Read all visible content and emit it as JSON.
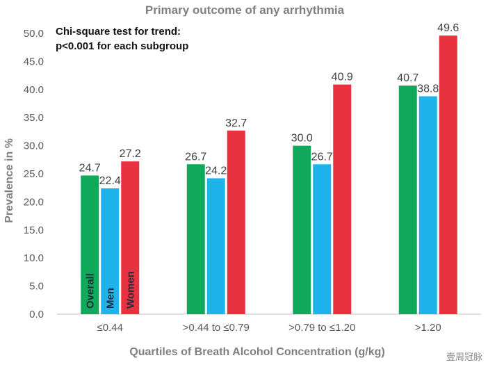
{
  "chart_data": {
    "type": "bar",
    "title": "Primary outcome of any arrhythmia",
    "annotation": [
      "Chi-square test for trend:",
      "p<0.001 for each subgroup"
    ],
    "xlabel": "Quartiles of Breath Alcohol Concentration (g/kg)",
    "ylabel": "Prevalence in %",
    "ylim": [
      0,
      50
    ],
    "yticks": [
      "0.0",
      "5.0",
      "10.0",
      "15.0",
      "20.0",
      "25.0",
      "30.0",
      "35.0",
      "40.0",
      "45.0",
      "50.0"
    ],
    "categories": [
      "≤0.44",
      ">0.44 to ≤0.79",
      ">0.79 to ≤1.20",
      ">1.20"
    ],
    "series": [
      {
        "name": "Overall",
        "color": "#10a85a",
        "values": [
          24.7,
          26.7,
          30.0,
          40.7
        ],
        "labels": [
          "24.7",
          "26.7",
          "30.0",
          "40.7"
        ]
      },
      {
        "name": "Men",
        "color": "#1fb3ec",
        "values": [
          22.4,
          24.2,
          26.7,
          38.8
        ],
        "labels": [
          "22.4",
          "24.2",
          "26.7",
          "38.8"
        ]
      },
      {
        "name": "Women",
        "color": "#e8323f",
        "values": [
          27.2,
          32.7,
          40.9,
          49.6
        ],
        "labels": [
          "27.2",
          "32.7",
          "40.9",
          "49.6"
        ]
      }
    ],
    "grid": false,
    "legend": "in-bar labels"
  },
  "watermark": "壹周冠脉"
}
